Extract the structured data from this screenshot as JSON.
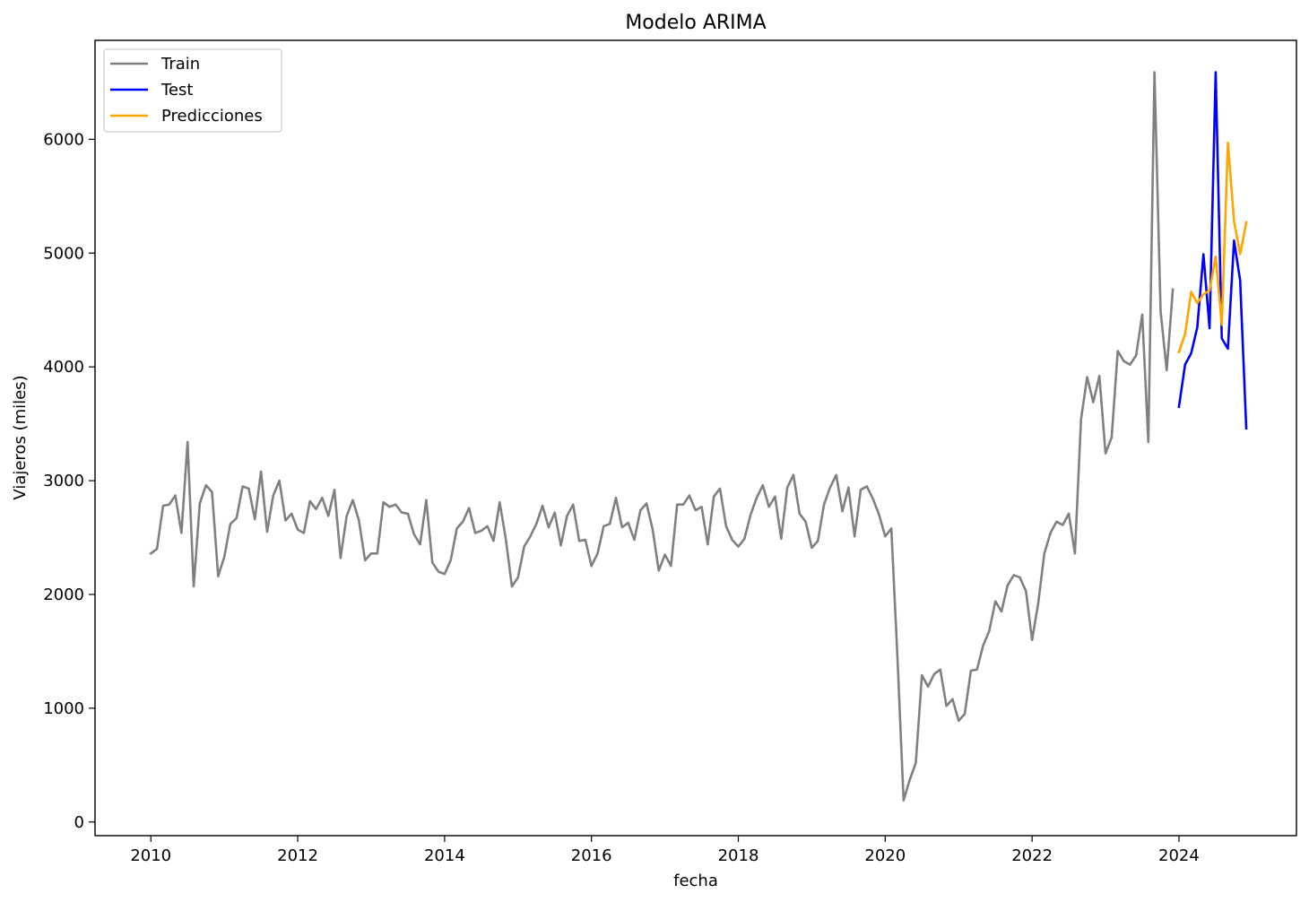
{
  "chart_data": {
    "type": "line",
    "title": "Modelo ARIMA",
    "xlabel": "fecha",
    "ylabel": "Viajeros (miles)",
    "xlim": [
      2009.24,
      2025.6
    ],
    "ylim": [
      -120,
      6870
    ],
    "xticks": [
      2010,
      2012,
      2014,
      2016,
      2018,
      2020,
      2022,
      2024
    ],
    "yticks": [
      0,
      1000,
      2000,
      3000,
      4000,
      5000,
      6000
    ],
    "grid": false,
    "legend_position": "upper-left",
    "series": [
      {
        "name": "Train",
        "color": "#808080",
        "start": "2010-01",
        "frequency": "monthly",
        "values": [
          2360,
          2400,
          2780,
          2790,
          2870,
          2540,
          3340,
          2070,
          2800,
          2960,
          2900,
          2160,
          2330,
          2620,
          2670,
          2950,
          2930,
          2660,
          3080,
          2550,
          2870,
          3000,
          2650,
          2710,
          2570,
          2540,
          2820,
          2750,
          2850,
          2690,
          2920,
          2320,
          2690,
          2830,
          2650,
          2300,
          2360,
          2360,
          2810,
          2770,
          2790,
          2720,
          2710,
          2530,
          2440,
          2830,
          2280,
          2200,
          2180,
          2300,
          2580,
          2640,
          2760,
          2540,
          2560,
          2600,
          2470,
          2810,
          2490,
          2070,
          2150,
          2420,
          2510,
          2620,
          2780,
          2590,
          2720,
          2430,
          2690,
          2790,
          2470,
          2480,
          2250,
          2360,
          2600,
          2620,
          2850,
          2590,
          2630,
          2480,
          2740,
          2800,
          2570,
          2210,
          2350,
          2250,
          2790,
          2790,
          2870,
          2740,
          2770,
          2440,
          2860,
          2930,
          2600,
          2480,
          2420,
          2490,
          2700,
          2850,
          2960,
          2770,
          2860,
          2490,
          2940,
          3050,
          2710,
          2640,
          2410,
          2470,
          2790,
          2940,
          3050,
          2730,
          2940,
          2510,
          2920,
          2950,
          2840,
          2700,
          2510,
          2580,
          1450,
          190,
          370,
          520,
          1290,
          1190,
          1300,
          1340,
          1020,
          1080,
          890,
          950,
          1330,
          1340,
          1550,
          1680,
          1940,
          1850,
          2080,
          2170,
          2150,
          2030,
          1600,
          1920,
          2360,
          2540,
          2640,
          2610,
          2710,
          2360,
          3540,
          3910,
          3690,
          3920,
          3240,
          3380,
          4140,
          4050,
          4020,
          4100,
          4460,
          3340,
          6590,
          4490,
          3970,
          4680
        ]
      },
      {
        "name": "Test",
        "color": "#0000ff",
        "start": "2024-01",
        "frequency": "monthly",
        "values": [
          3650,
          4020,
          4120,
          4350,
          4990,
          4340,
          6590,
          4250,
          4160,
          5110,
          4760,
          3460
        ]
      },
      {
        "name": "Predicciones",
        "color": "#ffa500",
        "start": "2024-01",
        "frequency": "monthly",
        "values": [
          4130,
          4290,
          4660,
          4560,
          4640,
          4670,
          4970,
          4370,
          5970,
          5280,
          4990,
          5270
        ]
      }
    ]
  }
}
